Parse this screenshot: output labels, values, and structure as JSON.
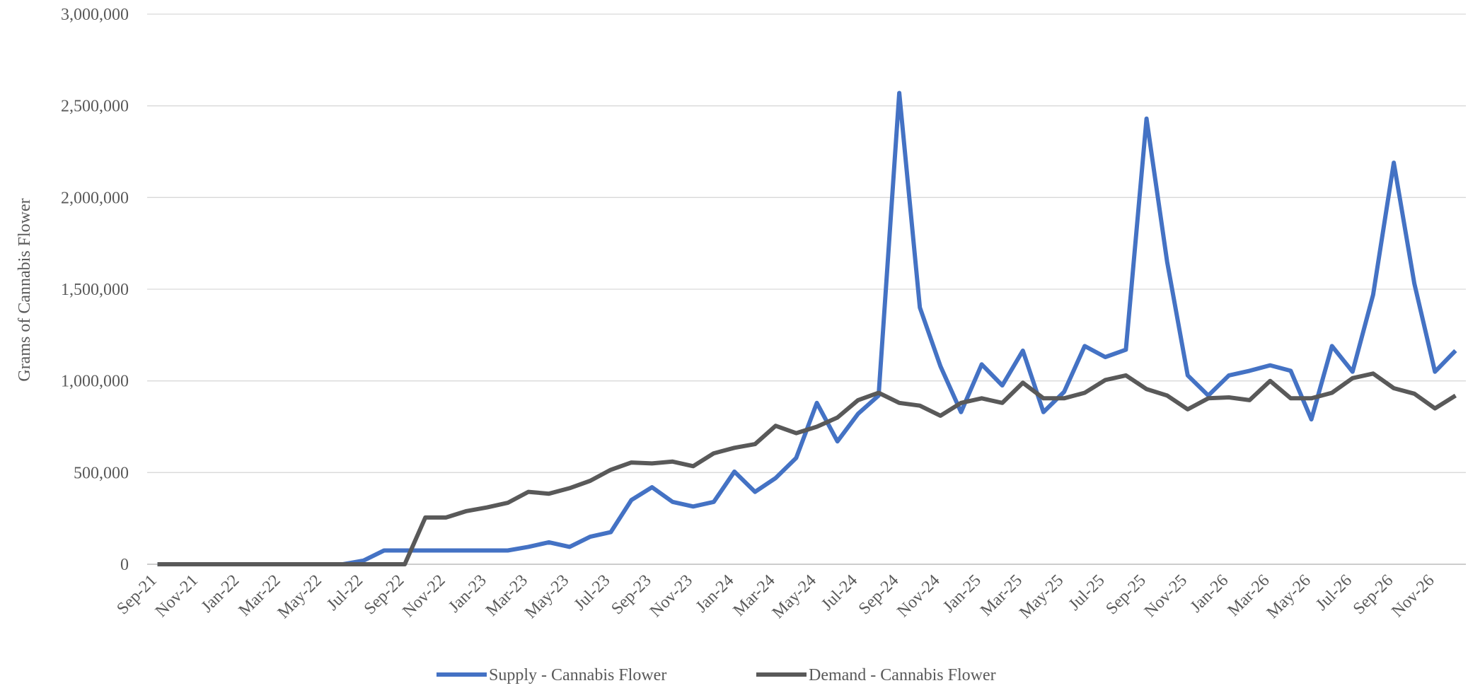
{
  "chart_data": {
    "type": "line",
    "y_label": "Grams of Cannabis Flower",
    "categories": [
      "Sep-21",
      null,
      "Nov-21",
      null,
      "Jan-22",
      null,
      "Mar-22",
      null,
      "May-22",
      null,
      "Jul-22",
      null,
      "Sep-22",
      null,
      "Nov-22",
      null,
      "Jan-23",
      null,
      "Mar-23",
      null,
      "May-23",
      null,
      "Jul-23",
      null,
      "Sep-23",
      null,
      "Nov-23",
      null,
      "Jan-24",
      null,
      "Mar-24",
      null,
      "May-24",
      null,
      "Jul-24",
      null,
      "Sep-24",
      null,
      "Nov-24",
      null,
      "Jan-25",
      null,
      "Mar-25",
      null,
      "May-25",
      null,
      "Jul-25",
      null,
      "Sep-25",
      null,
      "Nov-25",
      null,
      "Jan-26",
      null,
      "Mar-26",
      null,
      "May-26",
      null,
      "Jul-26",
      null,
      "Sep-26",
      null,
      "Nov-26",
      null
    ],
    "series": [
      {
        "name": "Supply - Cannabis Flower",
        "color": "#4472c4",
        "values": [
          0,
          0,
          0,
          0,
          0,
          0,
          0,
          0,
          0,
          0,
          20000,
          75000,
          75000,
          75000,
          75000,
          75000,
          75000,
          75000,
          95000,
          120000,
          95000,
          150000,
          175000,
          350000,
          420000,
          340000,
          315000,
          340000,
          505000,
          395000,
          470000,
          580000,
          880000,
          670000,
          820000,
          920000,
          2570000,
          1400000,
          1080000,
          830000,
          1090000,
          975000,
          1165000,
          830000,
          940000,
          1190000,
          1130000,
          1170000,
          2430000,
          1650000,
          1030000,
          920000,
          1030000,
          1055000,
          1085000,
          1055000,
          790000,
          1190000,
          1050000,
          1470000,
          2190000,
          1530000,
          1050000,
          1165000
        ]
      },
      {
        "name": "Demand - Cannabis Flower",
        "color": "#595959",
        "values": [
          0,
          0,
          0,
          0,
          0,
          0,
          0,
          0,
          0,
          0,
          0,
          0,
          0,
          255000,
          255000,
          290000,
          310000,
          335000,
          395000,
          385000,
          415000,
          455000,
          515000,
          555000,
          550000,
          560000,
          535000,
          605000,
          635000,
          655000,
          755000,
          715000,
          750000,
          800000,
          895000,
          935000,
          880000,
          865000,
          810000,
          880000,
          905000,
          880000,
          990000,
          905000,
          905000,
          935000,
          1005000,
          1030000,
          955000,
          920000,
          845000,
          905000,
          910000,
          895000,
          1000000,
          905000,
          905000,
          935000,
          1015000,
          1040000,
          960000,
          930000,
          850000,
          920000
        ]
      }
    ],
    "ylim": [
      0,
      3000000
    ],
    "yticks": [
      0,
      {
        "value": 500000,
        "label": "500,000"
      },
      {
        "value": 1000000,
        "label": "1,000,000"
      },
      {
        "value": 1500000,
        "label": "1,500,000"
      },
      {
        "value": 2000000,
        "label": "2,000,000"
      },
      {
        "value": 2500000,
        "label": "2,500,000"
      },
      {
        "value": 3000000,
        "label": "3,000,000"
      }
    ],
    "grid": true,
    "legend": "bottom"
  }
}
